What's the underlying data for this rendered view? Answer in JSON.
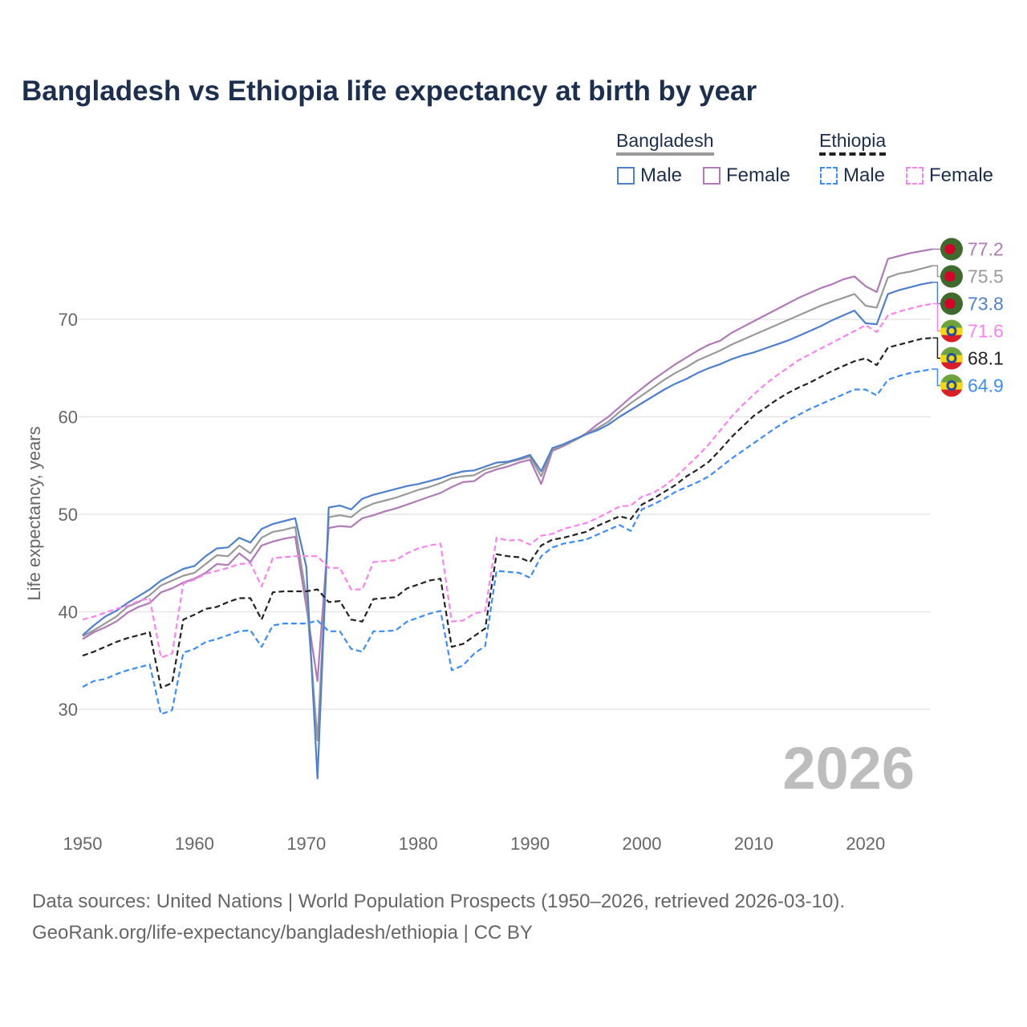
{
  "title": "Bangladesh vs Ethiopia life expectancy at birth by year",
  "legend": {
    "groups": [
      {
        "name": "Bangladesh",
        "items": [
          {
            "label": "Male",
            "color": "#4f7fcf",
            "dashed": false
          },
          {
            "label": "Female",
            "color": "#b07ab8",
            "dashed": false
          }
        ]
      },
      {
        "name": "Ethiopia",
        "items": [
          {
            "label": "Male",
            "color": "#3b8cff",
            "dashed": true
          },
          {
            "label": "Female",
            "color": "#ff80f0",
            "dashed": true
          }
        ]
      }
    ]
  },
  "watermark_year": "2026",
  "footer": {
    "line1": "Data sources: United Nations | World Population Prospects (1950–2026, retrieved 2026-03-10).",
    "line2": "GeoRank.org/life-expectancy/bangladesh/ethiopia | CC BY"
  },
  "chart_data": {
    "type": "line",
    "title": "Bangladesh vs Ethiopia life expectancy at birth by year",
    "xlabel": "",
    "ylabel": "Life expectancy, years",
    "xlim": [
      1950,
      2026
    ],
    "ylim": [
      20,
      80
    ],
    "xticks": [
      1950,
      1960,
      1970,
      1980,
      1990,
      2000,
      2010,
      2020
    ],
    "yticks": [
      30,
      40,
      50,
      60,
      70
    ],
    "grid": true,
    "x_start": 1950,
    "series": [
      {
        "name": "Bangladesh Female",
        "country": "Bangladesh",
        "color": "#b07ab8",
        "dashed": false,
        "end_label": "77.2",
        "values": [
          37.2,
          37.9,
          38.4,
          39.0,
          39.9,
          40.5,
          40.9,
          42.0,
          42.4,
          43.0,
          43.4,
          44.0,
          44.9,
          44.8,
          46.0,
          45.1,
          46.8,
          47.2,
          47.5,
          47.7,
          40.5,
          32.9,
          48.6,
          48.8,
          48.7,
          49.6,
          49.9,
          50.3,
          50.6,
          51.0,
          51.4,
          51.8,
          52.2,
          52.8,
          53.3,
          53.4,
          54.2,
          54.6,
          54.9,
          55.3,
          55.6,
          53.1,
          56.5,
          57.0,
          57.6,
          58.3,
          59.2,
          60.0,
          61.0,
          62.0,
          62.9,
          63.8,
          64.6,
          65.4,
          66.1,
          66.8,
          67.4,
          67.8,
          68.6,
          69.2,
          69.8,
          70.4,
          71.0,
          71.6,
          72.2,
          72.7,
          73.2,
          73.6,
          74.1,
          74.4,
          73.4,
          72.8,
          76.2,
          76.5,
          76.8,
          77.0,
          77.2
        ]
      },
      {
        "name": "Bangladesh Total",
        "country": "Bangladesh",
        "color": "#999999",
        "dashed": false,
        "end_label": "75.5",
        "values": [
          37.5,
          38.1,
          38.8,
          39.5,
          40.5,
          41.0,
          41.7,
          42.7,
          43.2,
          43.7,
          44.0,
          44.9,
          45.8,
          45.7,
          46.8,
          46.0,
          47.6,
          48.2,
          48.4,
          48.7,
          41.6,
          26.8,
          49.7,
          49.9,
          49.7,
          50.6,
          51.1,
          51.4,
          51.7,
          52.1,
          52.5,
          52.8,
          53.2,
          53.7,
          53.9,
          54.0,
          54.6,
          54.9,
          55.3,
          55.6,
          55.9,
          53.9,
          56.6,
          57.1,
          57.6,
          58.2,
          58.8,
          59.5,
          60.5,
          61.4,
          62.2,
          63.0,
          63.8,
          64.5,
          65.1,
          65.8,
          66.3,
          66.8,
          67.4,
          67.9,
          68.4,
          68.9,
          69.4,
          69.9,
          70.4,
          70.9,
          71.4,
          71.8,
          72.2,
          72.6,
          71.4,
          71.2,
          74.3,
          74.7,
          74.9,
          75.2,
          75.5
        ]
      },
      {
        "name": "Bangladesh Male",
        "country": "Bangladesh",
        "color": "#4f7fcf",
        "dashed": false,
        "end_label": "73.8",
        "values": [
          37.6,
          38.6,
          39.5,
          40.1,
          40.9,
          41.6,
          42.3,
          43.2,
          43.8,
          44.4,
          44.7,
          45.7,
          46.5,
          46.6,
          47.6,
          47.1,
          48.5,
          49.0,
          49.3,
          49.6,
          44.6,
          22.9,
          50.7,
          50.9,
          50.5,
          51.6,
          52.0,
          52.3,
          52.6,
          52.9,
          53.1,
          53.4,
          53.7,
          54.1,
          54.4,
          54.5,
          54.9,
          55.3,
          55.4,
          55.7,
          56.1,
          54.4,
          56.8,
          57.2,
          57.7,
          58.2,
          58.6,
          59.2,
          60.0,
          60.7,
          61.4,
          62.1,
          62.8,
          63.4,
          63.9,
          64.5,
          65.0,
          65.4,
          65.9,
          66.3,
          66.6,
          67.0,
          67.4,
          67.8,
          68.3,
          68.8,
          69.3,
          69.9,
          70.4,
          70.9,
          69.6,
          69.5,
          72.6,
          73.0,
          73.3,
          73.6,
          73.8
        ]
      },
      {
        "name": "Ethiopia Female",
        "country": "Ethiopia",
        "color": "#ff80f0",
        "dashed": true,
        "end_label": "71.6",
        "values": [
          39.2,
          39.5,
          39.9,
          40.3,
          40.6,
          41.1,
          41.4,
          35.3,
          35.7,
          42.9,
          43.3,
          43.9,
          44.2,
          44.5,
          44.9,
          45.0,
          42.6,
          45.5,
          45.6,
          45.7,
          45.7,
          45.7,
          44.5,
          44.5,
          42.3,
          42.3,
          45.1,
          45.2,
          45.3,
          46.0,
          46.5,
          46.8,
          47.0,
          39.0,
          39.1,
          39.8,
          40.1,
          47.6,
          47.3,
          47.4,
          46.9,
          47.8,
          48.0,
          48.5,
          48.8,
          49.1,
          49.6,
          50.2,
          50.8,
          50.9,
          51.8,
          52.2,
          52.9,
          53.8,
          54.9,
          56.0,
          57.2,
          58.6,
          60.0,
          61.2,
          62.3,
          63.3,
          64.2,
          65.0,
          65.8,
          66.4,
          67.0,
          67.6,
          68.2,
          68.8,
          69.4,
          68.7,
          70.4,
          70.8,
          71.1,
          71.4,
          71.6
        ]
      },
      {
        "name": "Ethiopia Total",
        "country": "Ethiopia",
        "color": "#222222",
        "dashed": true,
        "end_label": "68.1",
        "values": [
          35.5,
          35.9,
          36.4,
          36.9,
          37.3,
          37.6,
          37.9,
          32.2,
          32.7,
          39.2,
          39.7,
          40.3,
          40.5,
          41.0,
          41.4,
          41.4,
          39.2,
          42.0,
          42.1,
          42.1,
          42.1,
          42.3,
          41.0,
          41.1,
          39.2,
          39.0,
          41.3,
          41.4,
          41.5,
          42.4,
          42.8,
          43.2,
          43.4,
          36.4,
          36.7,
          37.5,
          38.3,
          45.9,
          45.7,
          45.6,
          45.1,
          46.8,
          47.4,
          47.6,
          47.9,
          48.2,
          48.8,
          49.3,
          49.8,
          49.5,
          51.0,
          51.6,
          52.3,
          53.0,
          53.9,
          54.6,
          55.4,
          56.6,
          57.9,
          59.0,
          60.1,
          60.9,
          61.7,
          62.4,
          63.0,
          63.5,
          64.1,
          64.7,
          65.2,
          65.7,
          66.0,
          65.3,
          67.1,
          67.4,
          67.7,
          68.0,
          68.1
        ]
      },
      {
        "name": "Ethiopia Male",
        "country": "Ethiopia",
        "color": "#3b8cff",
        "dashed": true,
        "end_label": "64.9",
        "values": [
          32.3,
          32.9,
          33.1,
          33.6,
          34.0,
          34.3,
          34.6,
          29.5,
          29.9,
          35.8,
          36.2,
          36.9,
          37.2,
          37.6,
          38.0,
          38.1,
          36.4,
          38.6,
          38.8,
          38.8,
          38.8,
          39.1,
          38.0,
          38.0,
          36.2,
          35.9,
          38.0,
          38.0,
          38.1,
          39.0,
          39.4,
          39.8,
          40.1,
          34.0,
          34.5,
          35.7,
          36.5,
          44.2,
          44.1,
          44.0,
          43.5,
          45.7,
          46.6,
          47.0,
          47.2,
          47.4,
          47.9,
          48.4,
          48.9,
          48.3,
          50.5,
          51.0,
          51.6,
          52.3,
          52.8,
          53.3,
          53.9,
          54.8,
          55.7,
          56.5,
          57.3,
          58.1,
          58.9,
          59.6,
          60.2,
          60.8,
          61.3,
          61.8,
          62.3,
          62.8,
          62.8,
          62.2,
          63.8,
          64.2,
          64.5,
          64.7,
          64.9
        ]
      }
    ]
  }
}
